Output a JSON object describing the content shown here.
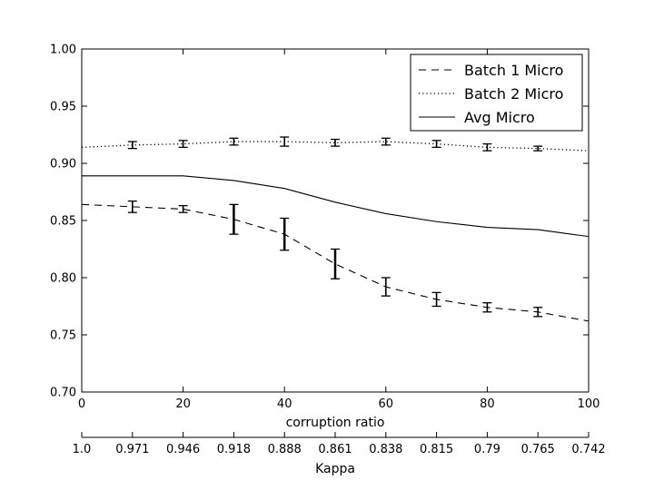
{
  "chart_data": {
    "type": "line",
    "x": [
      0,
      10,
      20,
      30,
      40,
      50,
      60,
      70,
      80,
      90,
      100
    ],
    "xlabel": "corruption ratio",
    "xlim": [
      0,
      100
    ],
    "xticks": [
      "0",
      "20",
      "40",
      "60",
      "80",
      "100"
    ],
    "ylim": [
      0.7,
      1.0
    ],
    "yticks": [
      "0.70",
      "0.75",
      "0.80",
      "0.85",
      "0.90",
      "0.95",
      "1.00"
    ],
    "secondary_axis": {
      "label": "Kappa",
      "ticks": [
        "1.0",
        "0.971",
        "0.946",
        "0.918",
        "0.888",
        "0.861",
        "0.838",
        "0.815",
        "0.79",
        "0.765",
        "0.742"
      ]
    },
    "grid": false,
    "legend_position": "top-right",
    "series": [
      {
        "name": "Batch 1 Micro",
        "style": "dashed",
        "values": [
          0.864,
          0.862,
          0.86,
          0.851,
          0.838,
          0.812,
          0.792,
          0.781,
          0.774,
          0.77,
          0.762
        ],
        "errors": [
          0,
          0.005,
          0.003,
          0.013,
          0.014,
          0.013,
          0.008,
          0.006,
          0.004,
          0.004,
          0
        ]
      },
      {
        "name": "Batch 2 Micro",
        "style": "dotted",
        "values": [
          0.914,
          0.916,
          0.917,
          0.919,
          0.919,
          0.918,
          0.919,
          0.917,
          0.914,
          0.913,
          0.911
        ],
        "errors": [
          0,
          0.003,
          0.003,
          0.003,
          0.004,
          0.003,
          0.003,
          0.003,
          0.003,
          0.002,
          0
        ]
      },
      {
        "name": "Avg Micro",
        "style": "solid",
        "values": [
          0.889,
          0.889,
          0.889,
          0.885,
          0.878,
          0.866,
          0.856,
          0.849,
          0.844,
          0.842,
          0.836
        ],
        "errors": []
      }
    ]
  }
}
